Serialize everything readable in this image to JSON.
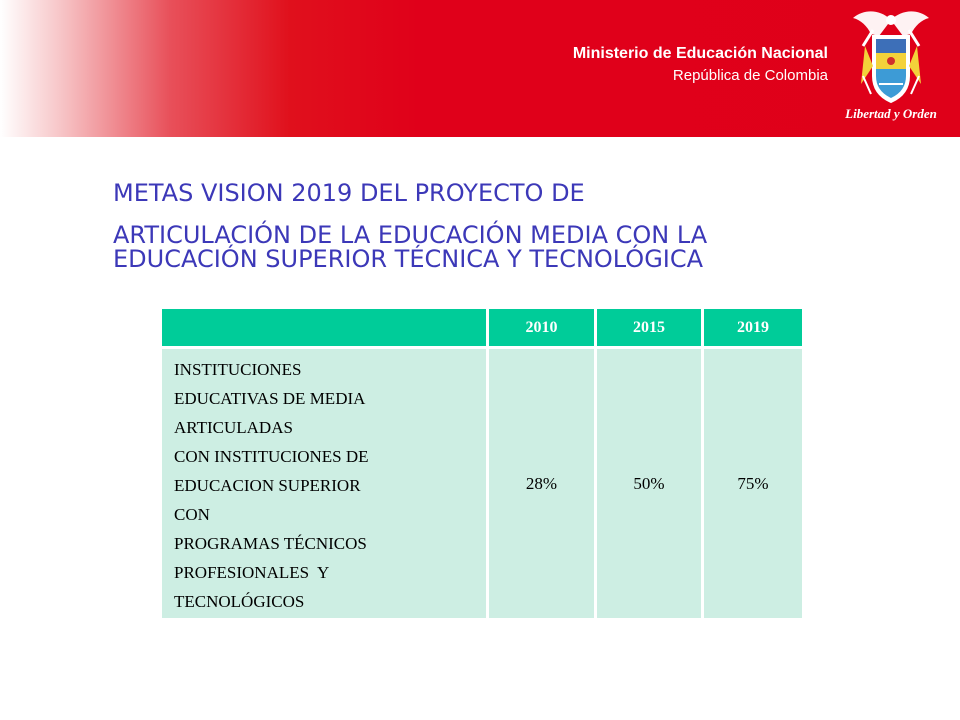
{
  "header": {
    "ministry": "Ministerio de Educación Nacional",
    "country": "República de Colombia",
    "motto": "Libertad y Orden",
    "band_color": "#df0019",
    "crest_icon": "colombia-coat-of-arms"
  },
  "title": {
    "line1": "METAS VISION 2019 DEL PROYECTO DE",
    "line2": "ARTICULACIÓN DE LA EDUCACIÓN MEDIA CON LA",
    "line3": "EDUCACIÓN SUPERIOR TÉCNICA Y TECNOLÓGICA",
    "color": "#3c38b8"
  },
  "table": {
    "header_color": "#00cc99",
    "cell_color": "#cdeee3",
    "columns": [
      "",
      "2010",
      "2015",
      "2019"
    ],
    "row": {
      "description_lines": [
        "INSTITUCIONES",
        "EDUCATIVAS DE MEDIA",
        "ARTICULADAS",
        "CON INSTITUCIONES DE",
        "EDUCACION SUPERIOR",
        "CON",
        "PROGRAMAS TÉCNICOS",
        "PROFESIONALES  Y",
        "TECNOLÓGICOS"
      ],
      "values": [
        "28%",
        "50%",
        "75%"
      ]
    }
  }
}
